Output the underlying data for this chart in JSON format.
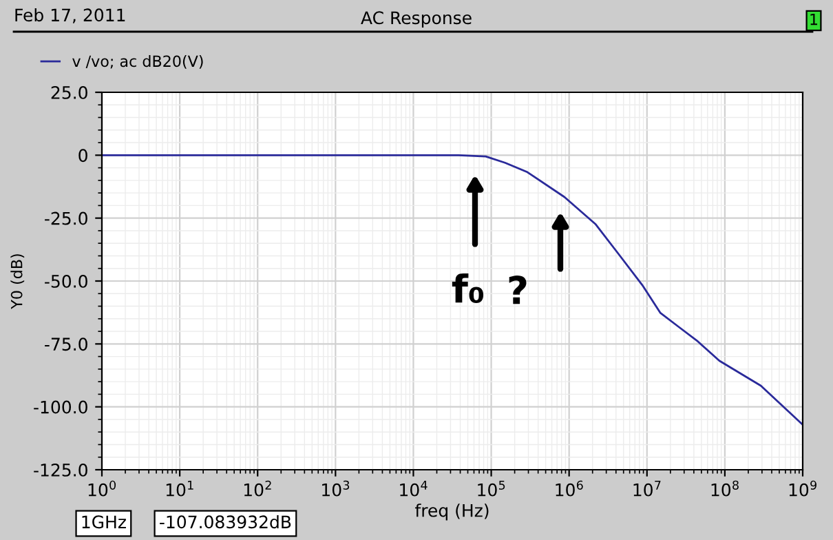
{
  "chart_data": {
    "type": "line",
    "title": "AC Response",
    "xlabel": "freq (Hz)",
    "ylabel": "Y0 (dB)",
    "annotations": [
      "Feb 17, 2011",
      "1",
      "1GHz",
      "-107.083932dB",
      "f₀",
      "?"
    ],
    "series": [
      {
        "name": "v /vo; ac dB20(V)",
        "color": "#2a2a9a",
        "x": [
          1,
          10,
          100,
          1000,
          10000,
          38000,
          85000,
          150000,
          290000,
          870000,
          2200000,
          4400000,
          8700000,
          14800000,
          25000000,
          45000000,
          85000000,
          290000000,
          1000000000
        ],
        "values": [
          0,
          0,
          0,
          0,
          0,
          0,
          -0.5,
          -3,
          -6.7,
          -16.6,
          -27.5,
          -39.6,
          -51.6,
          -62.6,
          -68,
          -74,
          -81.7,
          -91.6,
          -107.1
        ]
      }
    ],
    "xlim": [
      1,
      1000000000
    ],
    "ylim": [
      -125,
      25
    ],
    "xticks": [
      {
        "value": 1,
        "label": "10$^{0}$"
      },
      {
        "value": 10,
        "label": "10$^{1}$"
      },
      {
        "value": 100,
        "label": "10$^{2}$"
      },
      {
        "value": 1000,
        "label": "10$^{3}$"
      },
      {
        "value": 10000,
        "label": "10$^{4}$"
      },
      {
        "value": 100000,
        "label": "10$^{5}$"
      },
      {
        "value": 1000000,
        "label": "10$^{6}$"
      },
      {
        "value": 10000000,
        "label": "10$^{7}$"
      },
      {
        "value": 100000000,
        "label": "10$^{8}$"
      },
      {
        "value": 1000000000,
        "label": "10$^{9}$"
      }
    ],
    "yticks": [
      {
        "value": 25,
        "label": "25.0"
      },
      0,
      {
        "value": -25,
        "label": "-25.0"
      },
      {
        "value": -50,
        "label": "-50.0"
      },
      {
        "value": -75,
        "label": "-75.0"
      },
      {
        "value": -100,
        "label": "-100.0"
      },
      {
        "value": -125,
        "label": "-125.0"
      }
    ],
    "log": "x",
    "grid": true,
    "legend": "top left",
    "marker": "none",
    "line_style": "solid"
  }
}
